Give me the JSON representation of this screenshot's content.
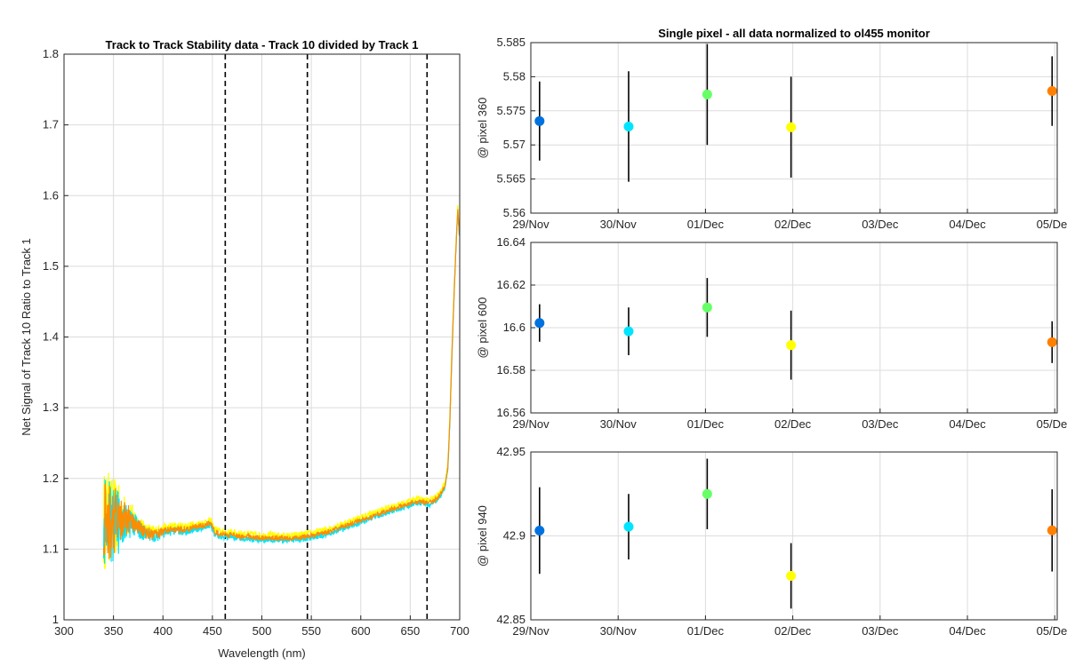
{
  "chart_data": [
    {
      "type": "line",
      "title": "Track to Track Stability data - Track 10 divided by Track 1",
      "xlabel": "Wavelength (nm)",
      "ylabel": "Net Signal of Track 10 Ratio to Track 1",
      "xlim": [
        300,
        700
      ],
      "ylim": [
        1,
        1.8
      ],
      "xticks": [
        300,
        350,
        400,
        450,
        500,
        550,
        600,
        650,
        700
      ],
      "xtick_labels": [
        "300",
        "350",
        "400",
        "450",
        "500",
        "550",
        "600",
        "650",
        "700"
      ],
      "yticks": [
        1,
        1.1,
        1.2,
        1.3,
        1.4,
        1.5,
        1.6,
        1.7,
        1.8
      ],
      "ytick_labels": [
        "1",
        "1.1",
        "1.2",
        "1.3",
        "1.4",
        "1.5",
        "1.6",
        "1.7",
        "1.8"
      ],
      "grid": true,
      "vertical_dashed_lines_x": [
        463,
        546,
        667
      ],
      "series": [
        {
          "color": "#ffff00",
          "offset": 0.004,
          "noise": 1.2
        },
        {
          "color": "#00e5ff",
          "offset": -0.003,
          "noise": 1.1
        },
        {
          "color": "#ff8c00",
          "offset": 0.0,
          "noise": 1.0
        }
      ],
      "profile": {
        "x": [
          340,
          345,
          350,
          355,
          360,
          370,
          380,
          390,
          400,
          410,
          420,
          430,
          440,
          448,
          452,
          460,
          470,
          480,
          490,
          500,
          510,
          520,
          530,
          540,
          550,
          560,
          570,
          580,
          590,
          600,
          610,
          620,
          630,
          640,
          650,
          655,
          660,
          665,
          670,
          675,
          680,
          685,
          688,
          690,
          692,
          694,
          696,
          698,
          700
        ],
        "y": [
          1.135,
          1.14,
          1.14,
          1.14,
          1.14,
          1.14,
          1.125,
          1.12,
          1.125,
          1.128,
          1.128,
          1.13,
          1.133,
          1.137,
          1.125,
          1.12,
          1.12,
          1.118,
          1.117,
          1.116,
          1.116,
          1.115,
          1.115,
          1.117,
          1.119,
          1.122,
          1.126,
          1.131,
          1.136,
          1.141,
          1.146,
          1.151,
          1.156,
          1.16,
          1.165,
          1.167,
          1.168,
          1.166,
          1.166,
          1.17,
          1.176,
          1.19,
          1.215,
          1.28,
          1.37,
          1.45,
          1.52,
          1.58,
          1.54
        ]
      },
      "noise_envelope": {
        "x": [
          340,
          350,
          360,
          370,
          380,
          400,
          450,
          700
        ],
        "amp": [
          0.06,
          0.05,
          0.03,
          0.015,
          0.01,
          0.006,
          0.004,
          0.003
        ]
      }
    },
    {
      "type": "scatter",
      "title": "Single pixel - all data normalized to ol455 monitor",
      "xlabel": "",
      "ylabel": "@ pixel 360",
      "xticks": [
        "29/Nov",
        "30/Nov",
        "01/Dec",
        "02/Dec",
        "03/Dec",
        "04/Dec",
        "05/Dec"
      ],
      "xtick_labels": [
        "29/Nov",
        "30/Nov",
        "01/Dec",
        "02/Dec",
        "03/Dec",
        "04/Dec",
        "05/Dec"
      ],
      "xlim": [
        0,
        6
      ],
      "ylim": [
        5.56,
        5.585
      ],
      "yticks": [
        5.56,
        5.565,
        5.57,
        5.575,
        5.58,
        5.585
      ],
      "ytick_labels": [
        "5.56",
        "5.565",
        "5.57",
        "5.575",
        "5.58",
        "5.585"
      ],
      "grid": true,
      "points": [
        {
          "x": 0.1,
          "y": 5.5735,
          "err": 0.0058,
          "color": "#0072e0"
        },
        {
          "x": 1.12,
          "y": 5.5727,
          "err": 0.0081,
          "color": "#00e5ff"
        },
        {
          "x": 2.02,
          "y": 5.5774,
          "err": 0.0074,
          "color": "#66ff66"
        },
        {
          "x": 2.98,
          "y": 5.5726,
          "err": 0.0074,
          "color": "#ffff00"
        },
        {
          "x": 5.97,
          "y": 5.5779,
          "err": 0.0051,
          "color": "#ff8000"
        }
      ]
    },
    {
      "type": "scatter",
      "title": "",
      "xlabel": "",
      "ylabel": "@ pixel 600",
      "xticks": [
        "29/Nov",
        "30/Nov",
        "01/Dec",
        "02/Dec",
        "03/Dec",
        "04/Dec",
        "05/Dec"
      ],
      "xtick_labels": [
        "29/Nov",
        "30/Nov",
        "01/Dec",
        "02/Dec",
        "03/Dec",
        "04/Dec",
        "05/Dec"
      ],
      "xlim": [
        0,
        6
      ],
      "ylim": [
        16.56,
        16.64
      ],
      "yticks": [
        16.56,
        16.58,
        16.6,
        16.62,
        16.64
      ],
      "ytick_labels": [
        "16.56",
        "16.58",
        "16.6",
        "16.62",
        "16.64"
      ],
      "grid": true,
      "points": [
        {
          "x": 0.1,
          "y": 16.6022,
          "err": 0.0088,
          "color": "#0072e0"
        },
        {
          "x": 1.12,
          "y": 16.5983,
          "err": 0.0112,
          "color": "#00e5ff"
        },
        {
          "x": 2.02,
          "y": 16.6095,
          "err": 0.0138,
          "color": "#66ff66"
        },
        {
          "x": 2.98,
          "y": 16.5918,
          "err": 0.0162,
          "color": "#ffff00"
        },
        {
          "x": 5.97,
          "y": 16.5932,
          "err": 0.0098,
          "color": "#ff8000"
        }
      ]
    },
    {
      "type": "scatter",
      "title": "",
      "xlabel": "",
      "ylabel": "@ pixel 940",
      "xticks": [
        "29/Nov",
        "30/Nov",
        "01/Dec",
        "02/Dec",
        "03/Dec",
        "04/Dec",
        "05/Dec"
      ],
      "xtick_labels": [
        "29/Nov",
        "30/Nov",
        "01/Dec",
        "02/Dec",
        "03/Dec",
        "04/Dec",
        "05/Dec"
      ],
      "xlim": [
        0,
        6
      ],
      "ylim": [
        42.85,
        42.95
      ],
      "yticks": [
        42.85,
        42.9,
        42.95
      ],
      "ytick_labels": [
        "42.85",
        "42.9",
        "42.95"
      ],
      "grid": true,
      "points": [
        {
          "x": 0.1,
          "y": 42.9032,
          "err": 0.0258,
          "color": "#0072e0"
        },
        {
          "x": 1.12,
          "y": 42.9055,
          "err": 0.0195,
          "color": "#00e5ff"
        },
        {
          "x": 2.02,
          "y": 42.925,
          "err": 0.021,
          "color": "#66ff66"
        },
        {
          "x": 2.98,
          "y": 42.8762,
          "err": 0.0195,
          "color": "#ffff00"
        },
        {
          "x": 5.97,
          "y": 42.9033,
          "err": 0.0245,
          "color": "#ff8000"
        }
      ]
    }
  ]
}
